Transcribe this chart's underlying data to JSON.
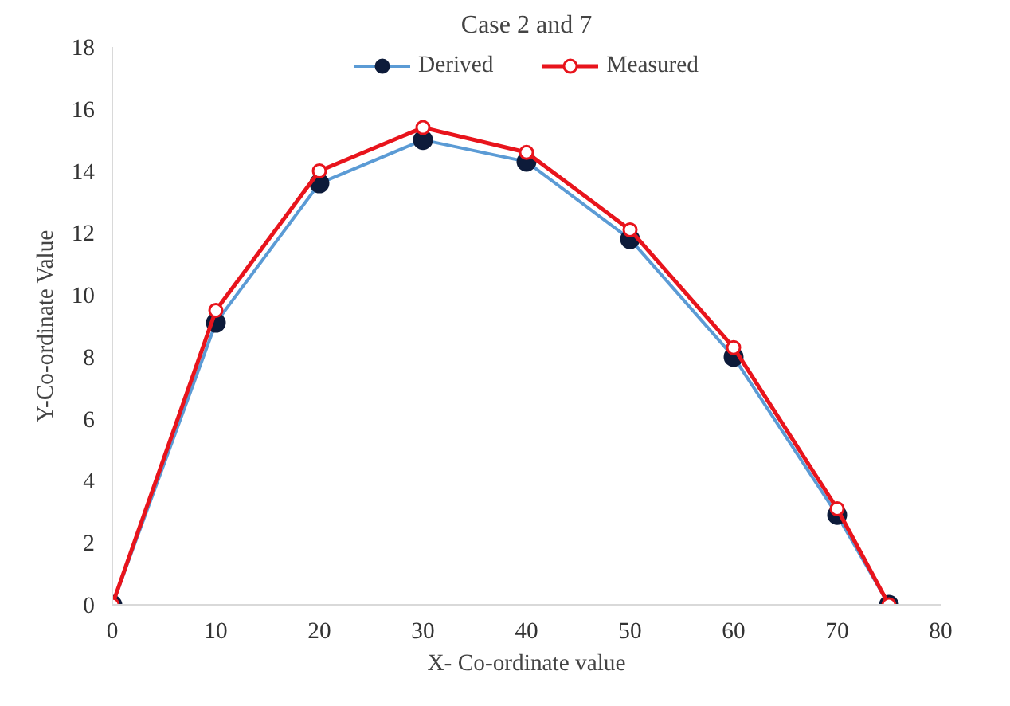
{
  "chart_data": {
    "type": "line",
    "title": "Case 2 and 7",
    "xlabel": "X- Co-ordinate value",
    "ylabel": "Y-Co-ordinate Value",
    "x": [
      0,
      10,
      20,
      30,
      40,
      50,
      60,
      70,
      75
    ],
    "series": [
      {
        "name": "Derived",
        "color": "#5b9bd5",
        "values": [
          0,
          9.1,
          13.6,
          15.0,
          14.3,
          11.8,
          8.0,
          2.9,
          0
        ]
      },
      {
        "name": "Measured",
        "color": "#e8141c",
        "values": [
          0,
          9.5,
          14.0,
          15.4,
          14.6,
          12.1,
          8.3,
          3.1,
          0
        ]
      }
    ],
    "xlim": [
      0,
      80
    ],
    "xticks": [
      0,
      10,
      20,
      30,
      40,
      50,
      60,
      70,
      80
    ],
    "ylim": [
      0,
      18
    ],
    "yticks": [
      0,
      2,
      4,
      6,
      8,
      10,
      12,
      14,
      16,
      18
    ],
    "grid": false,
    "legend": "top",
    "marker": "circle",
    "line_style": "solid"
  }
}
